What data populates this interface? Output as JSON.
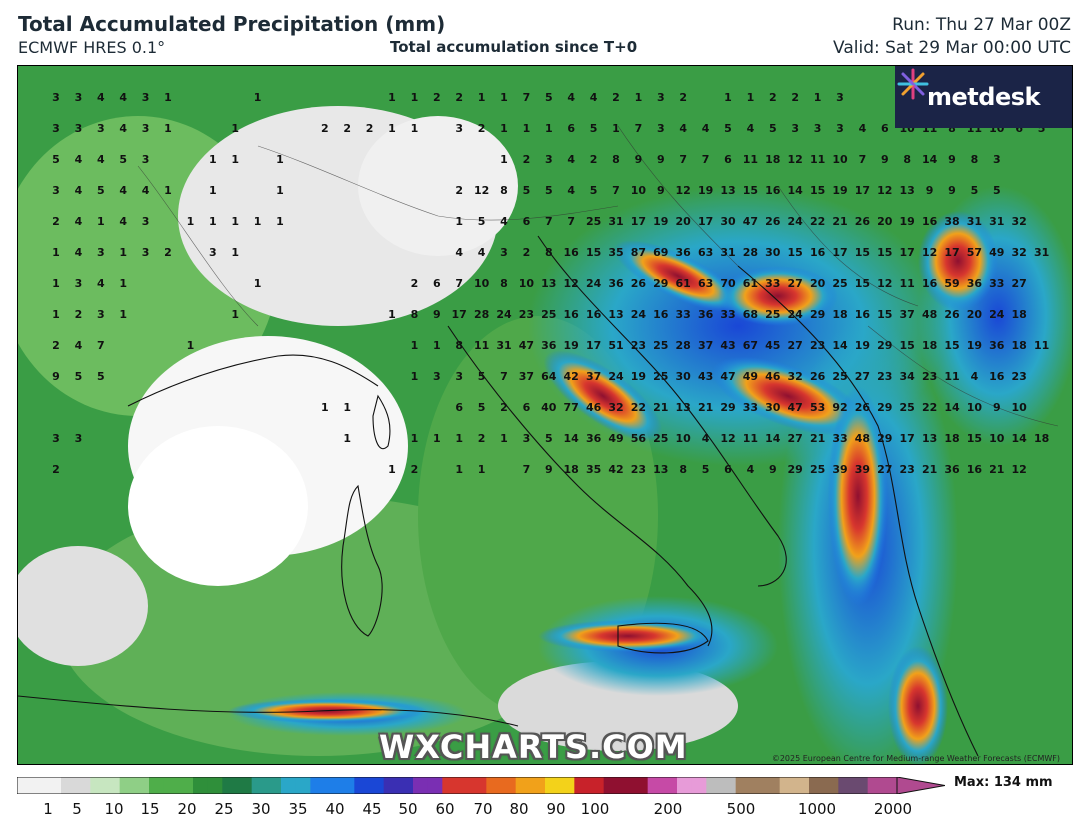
{
  "header": {
    "title": "Total Accumulated Precipitation (mm)",
    "model": "ECMWF HRES 0.1°",
    "accumulation": "Total accumulation since T+0",
    "run": "Run: Thu 27 Mar 00Z",
    "valid": "Valid: Sat 29 Mar 00:00 UTC"
  },
  "brand": {
    "logo_text": "metdesk",
    "watermark": "WXCHARTS.COM",
    "copyright": "©2025 European Centre for Medium-range Weather Forecasts (ECMWF)"
  },
  "colorbar": {
    "labels": [
      "1",
      "5",
      "10",
      "15",
      "20",
      "25",
      "30",
      "35",
      "40",
      "45",
      "50",
      "60",
      "70",
      "80",
      "90",
      "100",
      "200",
      "500",
      "1000",
      "2000"
    ],
    "max_label": "Max: 134 mm",
    "colors": [
      "#f2f2f2",
      "#d9d9d9",
      "#c7e6c0",
      "#8fcf86",
      "#4fae4a",
      "#2f8f3a",
      "#1f7a45",
      "#2a9a8a",
      "#2aa7c8",
      "#1e7ee8",
      "#1a47d6",
      "#3a2fb3",
      "#7a2fb3",
      "#d7362e",
      "#e86a1f",
      "#f1a11a",
      "#f3d21a",
      "#c8222a",
      "#8f1030",
      "#c64aa6",
      "#e79bd8",
      "#bdbdbd",
      "#a08060",
      "#d2b48c",
      "#8a6a50",
      "#6a4a70",
      "#b04a90"
    ]
  },
  "map": {
    "region": "Italy / Central Mediterranean",
    "value_rows": [
      "3 3 4 4 3 1 . . . 1 . . . . . 1 1 2 2 1 1 7 5 4 4 2 1 3 2 . 1 1 2 2 1 3",
      "3 3 3 4 3 1 . . 1 . . . 2 2 2 1 1 . 3 2 1 1 1 6 5 1 7 3 4 4 5 4 5 3 3 3 4 6 10 11 8 11 10 6 5",
      "5 4 4 5 3 . . 1 1 . 1 . . . . . . . . . 1 2 3 4 2 8 9 9 7 7 6 11 18 12 11 10 7 9 8 14 9 8 3",
      "3 4 5 4 4 1 . 1 . . 1 . . . . . . . 2 12 8 5 5 4 5 7 10 9 12 19 13 15 16 14 15 19 17 12 13 9 9 5 5",
      "2 4 1 4 3 . 1 1 1 1 1 . . . . . . . 1 5 4 6 7 7 25 31 17 19 20 17 30 47 26 24 22 21 26 20 19 16 38 31 31 32",
      "1 4 3 1 3 2 . 3 1 . . . . . . . . . 4 4 3 2 8 16 15 35 87 69 36 63 31 28 30 15 16 17 15 15 17 12 17 57 49 32 31",
      "1 3 4 1 . . . . . 1 . . . . . . 2 6 7 10 8 10 13 12 24 36 26 29 61 63 70 61 33 27 20 25 15 12 11 16 59 36 33 27",
      "1 2 3 1 . . . . 1 . . . . . . 1 8 9 17 28 24 23 25 16 16 13 24 16 33 36 33 68 25 24 29 18 16 15 37 48 26 20 24 18",
      "2 4 7 . . . 1 . . . . . . . . . 1 1 8 11 31 47 36 19 17 51 23 25 28 37 43 67 45 27 23 14 19 29 15 18 15 19 36 18 11",
      "9 5 5 . . . . . . . . . . . . . 1 3 3 5 7 37 64 42 37 24 19 25 30 43 47 49 46 32 26 25 27 23 34 23 11 4 16 23",
      ". . . . . . . . . . . . 1 1 . . . . 6 5 2 6 40 77 46 32 22 21 13 21 29 33 30 47 53 92 26 29 25 22 14 10 9 10",
      "3 3 . . . . . . . . . . . 1 . . 1 1 1 2 1 3 5 14 36 49 56 25 10 4 12 11 14 27 21 33 48 29 17 13 18 15 10 14 18",
      "2 . . . . . . . . . . . . . . 1 2 . 1 1 . 7 9 18 35 42 23 13 8 5 6 4 9 29 25 39 39 27 23 21 36 16 21 12"
    ]
  }
}
